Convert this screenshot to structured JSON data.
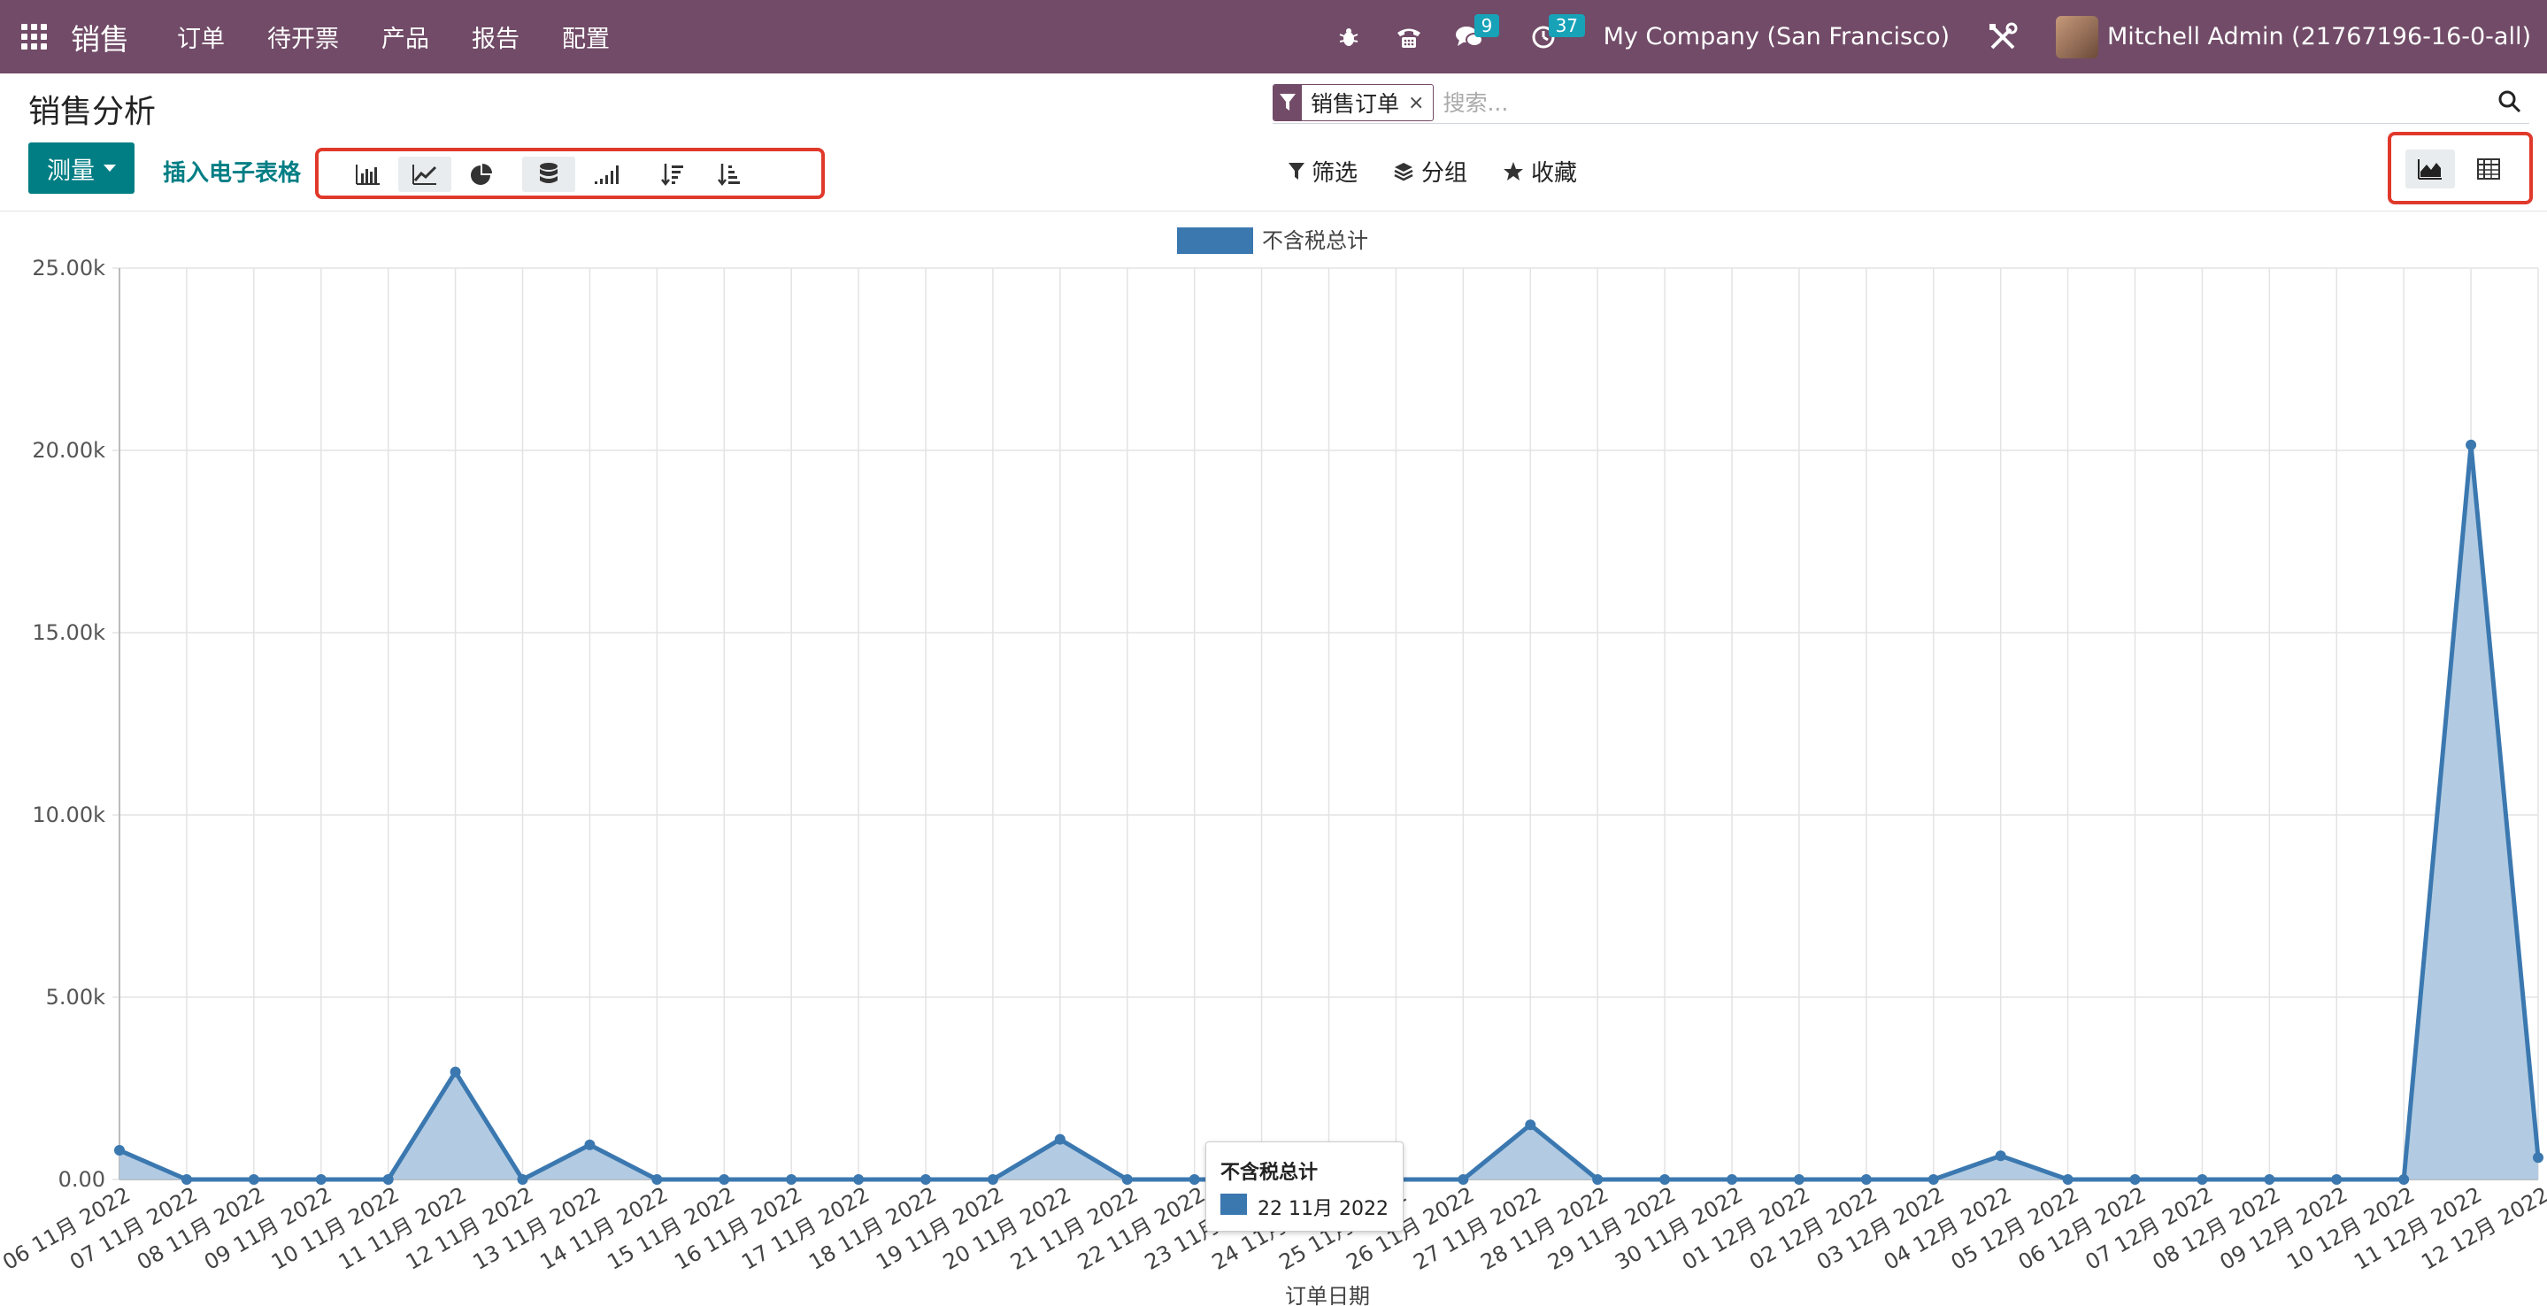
{
  "navbar": {
    "brand": "销售",
    "menu": [
      "订单",
      "待开票",
      "产品",
      "报告",
      "配置"
    ],
    "messages_count": "9",
    "activities_count": "37",
    "company": "My Company (San Francisco)",
    "user": "Mitchell Admin (21767196-16-0-all)"
  },
  "control_panel": {
    "title": "销售分析",
    "search": {
      "facet_label": "销售订单",
      "facet_remove": "×",
      "placeholder": "搜索..."
    },
    "measure_label": "测量",
    "spreadsheet_label": "插入电子表格",
    "options": {
      "filter": "筛选",
      "group": "分组",
      "favorite": "收藏"
    }
  },
  "colors": {
    "navbar": "#714B67",
    "accent": "#017E84",
    "series": "#3B78B0",
    "series_fill": "#AEC8E0",
    "highlight": "#E0392B"
  },
  "chart_data": {
    "type": "area",
    "legend": [
      "不含税总计"
    ],
    "xlabel": "订单日期",
    "ylabel": "",
    "ylim": [
      0,
      25000
    ],
    "yticks": [
      "0.00",
      "5.00k",
      "10.00k",
      "15.00k",
      "20.00k",
      "25.00k"
    ],
    "x": [
      "06 11月 2022",
      "07 11月 2022",
      "08 11月 2022",
      "09 11月 2022",
      "10 11月 2022",
      "11 11月 2022",
      "12 11月 2022",
      "13 11月 2022",
      "14 11月 2022",
      "15 11月 2022",
      "16 11月 2022",
      "17 11月 2022",
      "18 11月 2022",
      "19 11月 2022",
      "20 11月 2022",
      "21 11月 2022",
      "22 11月 2022",
      "23 11月 2022",
      "24 11月 2022",
      "25 11月 2022",
      "26 11月 2022",
      "27 11月 2022",
      "28 11月 2022",
      "29 11月 2022",
      "30 11月 2022",
      "01 12月 2022",
      "02 12月 2022",
      "03 12月 2022",
      "04 12月 2022",
      "05 12月 2022",
      "06 12月 2022",
      "07 12月 2022",
      "08 12月 2022",
      "09 12月 2022",
      "10 12月 2022",
      "11 12月 2022",
      "12 12月 2022"
    ],
    "series": [
      {
        "name": "不含税总计",
        "values": [
          800,
          0,
          0,
          0,
          0,
          2950,
          0,
          950,
          0,
          0,
          0,
          0,
          0,
          0,
          1100,
          0,
          0,
          0,
          0,
          0,
          0,
          1500,
          0,
          0,
          0,
          0,
          0,
          0,
          650,
          0,
          0,
          0,
          0,
          0,
          0,
          20150,
          600
        ]
      }
    ],
    "tooltip": {
      "title": "不含税总计",
      "label": "22 11月 2022"
    }
  }
}
